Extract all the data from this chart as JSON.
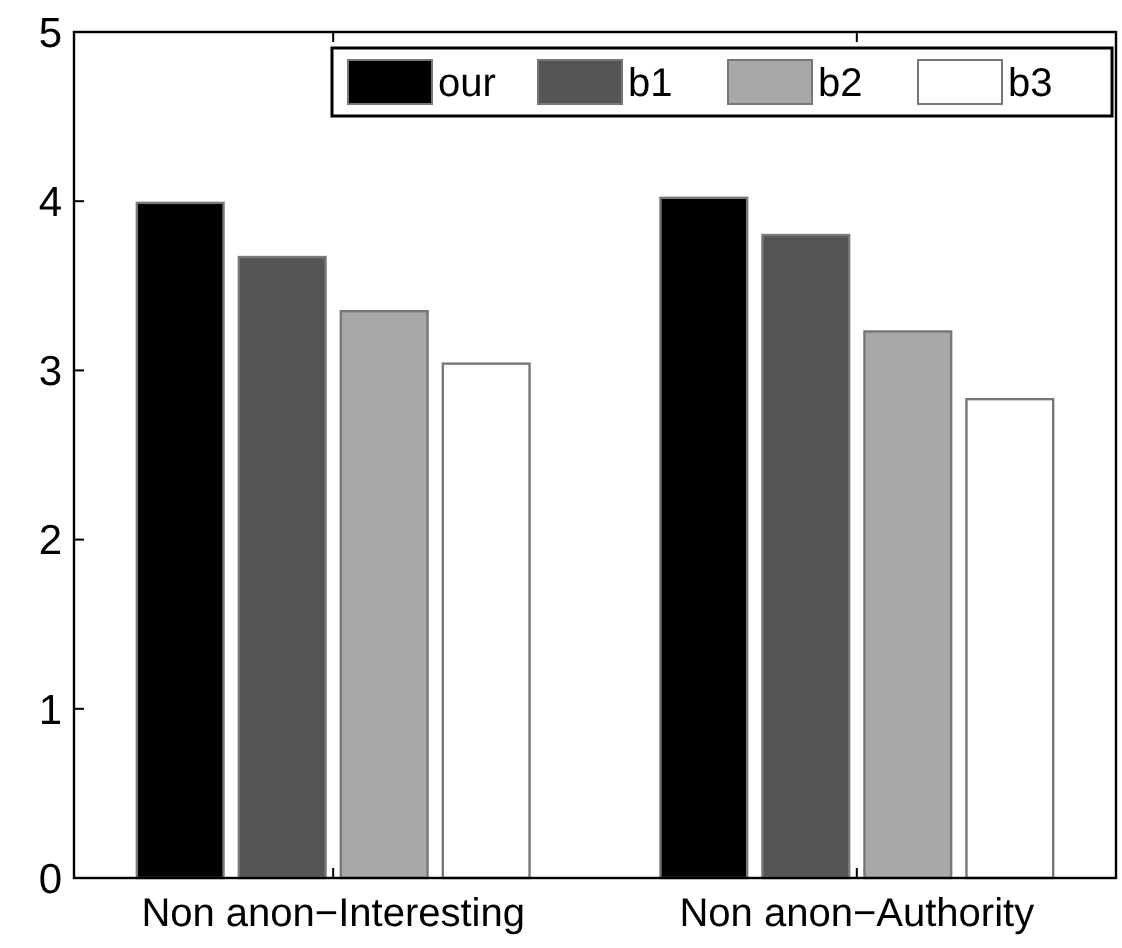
{
  "chart_data": {
    "type": "bar",
    "categories": [
      "Non anon−Interesting",
      "Non anon−Authority"
    ],
    "series": [
      {
        "name": "our",
        "color": "#000000",
        "values": [
          3.99,
          4.02
        ]
      },
      {
        "name": "b1",
        "color": "#555555",
        "values": [
          3.67,
          3.8
        ]
      },
      {
        "name": "b2",
        "color": "#a8a8a8",
        "values": [
          3.35,
          3.23
        ]
      },
      {
        "name": "b3",
        "color": "#ffffff",
        "values": [
          3.04,
          2.83
        ]
      }
    ],
    "ylim": [
      0,
      5
    ],
    "yticks": [
      0,
      1,
      2,
      3,
      4,
      5
    ],
    "legend": "top right",
    "grid": false
  }
}
